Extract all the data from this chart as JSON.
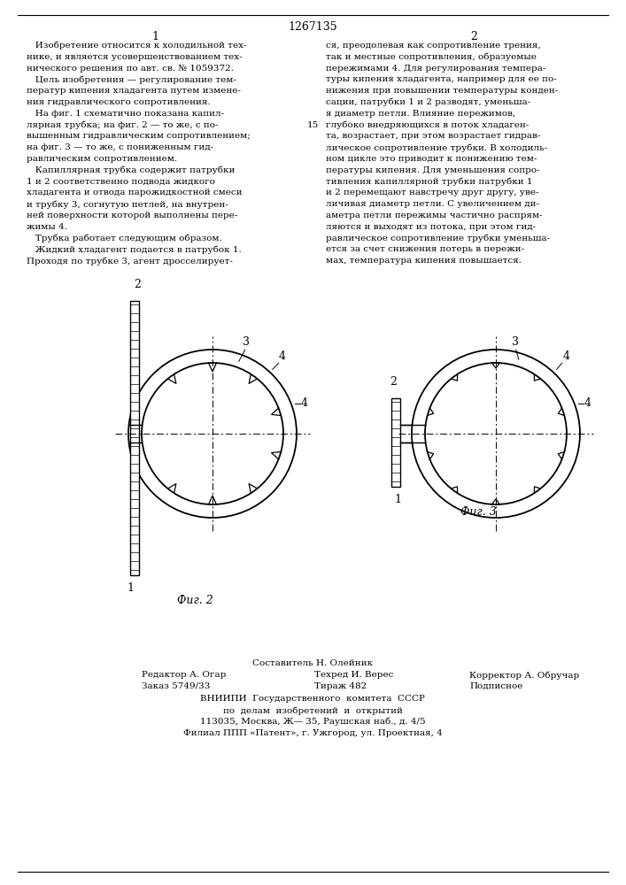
{
  "patent_number": "1267135",
  "page_col1": "1",
  "page_col2": "2",
  "text_col1": [
    "   Изобретение относится к холодильной тех-",
    "нике, и является усовершенствованием тех-",
    "нического решения по авт. св. № 1059372.",
    "   Цель изобретения — регулирование тем-",
    "ператур кипения хладагента путем измене-",
    "ния гидравлического сопротивления.",
    "   На фиг. 1 схематично показана капил-",
    "лярная трубка; на фиг. 2 — то же, с по-",
    "вышенным гидравлическим сопротивлением;",
    "на фиг. 3 — то же, с пониженным гид-",
    "равлическим сопротивлением.",
    "   Капиллярная трубка содержит патрубки",
    "1 и 2 соответственно подвода жидкого",
    "хладагента и отвода парожидкостной смеси",
    "и трубку 3, согнутую петлей, на внутрен-",
    "ней поверхности которой выполнены пере-",
    "жимы 4.",
    "   Трубка работает следующим образом.",
    "   Жидкий хладагент подается в патрубок 1.",
    "Проходя по трубке 3, агент дросселирует-"
  ],
  "text_col2": [
    "ся, преодолевая как сопротивление трения,",
    "так и местные сопротивления, образуемые",
    "пережимами 4. Для регулирования темпера-",
    "туры кипения хладагента, например для ее по-",
    "нижения при повышении температуры конден-",
    "сации, патрубки 1 и 2 разводят, уменьша-",
    "я диаметр петли. Влияние пережимов,",
    "глубоко внедряющихся в поток хладаген-",
    "та, возрастает, при этом возрастает гидрав-",
    "лическое сопротивление трубки. В холодиль-",
    "ном цикле это приводит к понижению тем-",
    "пературы кипения. Для уменьшения сопро-",
    "тивления капиллярной трубки патрубки 1",
    "и 2 перемещают навстречу друг другу, уве-",
    "личивая диаметр петли. С увеличением ди-",
    "аметра петли пережимы частично распрям-",
    "ляются и выходят из потока, при этом гид-",
    "равлическое сопротивление трубки уменьша-",
    "ется за счет снижения потерь в пережи-",
    "мах, температура кипения повышается."
  ],
  "bg_color": "#ffffff",
  "text_color": "#000000"
}
